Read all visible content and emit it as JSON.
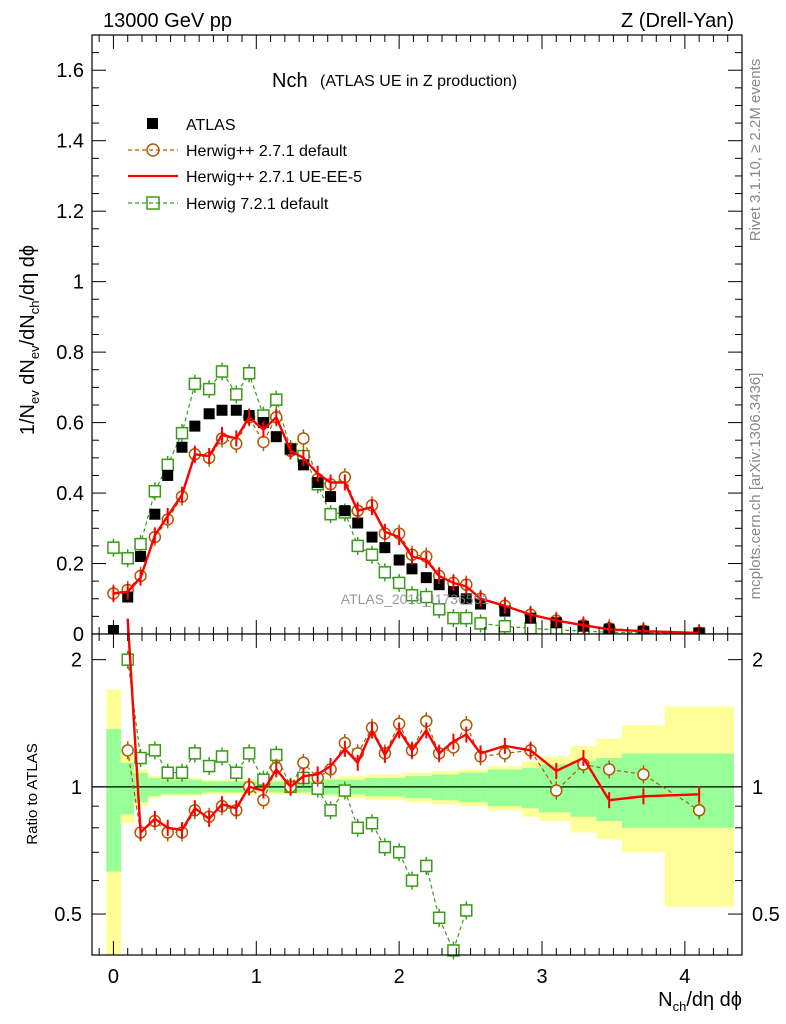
{
  "header": {
    "energy": "13000 GeV pp",
    "process": "Z (Drell-Yan)",
    "plot_title_main": "Nch",
    "plot_title_sub": "(ATLAS UE in Z production)",
    "side_rivet": "Rivet 3.1.10, ≥ 2.2M events",
    "side_mcplots": "mcplots.cern.ch [arXiv:1306.3436]",
    "watermark": "ATLAS_2019_I1736531"
  },
  "colors": {
    "atlas": "#000000",
    "herwigpp_default": "#b05a00",
    "herwigpp_ueee5": "#ff0000",
    "herwig7_default": "#3a9a1a",
    "band_inner": "#99ff99",
    "band_outer": "#ffff99"
  },
  "chart_data": [
    {
      "type": "scatter",
      "panel": "main",
      "title": "Nch (ATLAS UE in Z production)",
      "xlabel": "N_ch/dη dϕ",
      "ylabel": "1/N_ev dN_ev/dN_ch/dη dϕ",
      "xlim": [
        -0.15,
        4.4
      ],
      "ylim": [
        0,
        1.7
      ],
      "xticks": [
        "0",
        "1",
        "2",
        "3",
        "4"
      ],
      "yticks": [
        "0",
        "0.2",
        "0.4",
        "0.6",
        "0.8",
        "1",
        "1.2",
        "1.4",
        "1.6"
      ],
      "legend_position": "top-left",
      "series": [
        {
          "name": "ATLAS",
          "key": "atlas",
          "style": "square",
          "x": [
            0.0,
            0.1,
            0.19,
            0.29,
            0.38,
            0.48,
            0.57,
            0.67,
            0.76,
            0.86,
            0.95,
            1.05,
            1.14,
            1.24,
            1.33,
            1.43,
            1.52,
            1.62,
            1.71,
            1.81,
            1.9,
            2.0,
            2.09,
            2.19,
            2.28,
            2.38,
            2.47,
            2.57,
            2.74,
            2.92,
            3.1,
            3.29,
            3.47,
            3.71,
            4.1
          ],
          "y": [
            0.01,
            0.105,
            0.22,
            0.34,
            0.45,
            0.53,
            0.59,
            0.625,
            0.635,
            0.635,
            0.62,
            0.6,
            0.56,
            0.525,
            0.48,
            0.43,
            0.39,
            0.35,
            0.315,
            0.275,
            0.245,
            0.21,
            0.185,
            0.16,
            0.14,
            0.12,
            0.1,
            0.085,
            0.065,
            0.045,
            0.032,
            0.022,
            0.014,
            0.008,
            0.003
          ]
        },
        {
          "name": "Herwig++ 2.7.1 default",
          "key": "herwigpp_default",
          "style": "circle-dashed",
          "x": [
            0.0,
            0.1,
            0.19,
            0.29,
            0.38,
            0.48,
            0.57,
            0.67,
            0.76,
            0.86,
            0.95,
            1.05,
            1.14,
            1.24,
            1.33,
            1.43,
            1.52,
            1.62,
            1.71,
            1.81,
            1.9,
            2.0,
            2.09,
            2.19,
            2.28,
            2.38,
            2.47,
            2.57,
            2.74,
            2.92,
            3.1,
            3.29,
            3.47,
            3.71,
            4.1
          ],
          "y": [
            0.115,
            0.125,
            0.165,
            0.275,
            0.325,
            0.39,
            0.51,
            0.5,
            0.555,
            0.54,
            0.615,
            0.545,
            0.615,
            0.52,
            0.555,
            0.44,
            0.425,
            0.445,
            0.35,
            0.365,
            0.285,
            0.285,
            0.225,
            0.22,
            0.165,
            0.145,
            0.14,
            0.1,
            0.08,
            0.055,
            0.038,
            0.025,
            0.016,
            0.009,
            0.003
          ]
        },
        {
          "name": "Herwig++ 2.7.1 UE-EE-5",
          "key": "herwigpp_ueee5",
          "style": "line",
          "x": [
            0.0,
            0.1,
            0.19,
            0.29,
            0.38,
            0.48,
            0.57,
            0.67,
            0.76,
            0.86,
            0.95,
            1.05,
            1.14,
            1.24,
            1.33,
            1.43,
            1.52,
            1.62,
            1.71,
            1.81,
            1.9,
            2.0,
            2.09,
            2.19,
            2.28,
            2.38,
            2.47,
            2.57,
            2.74,
            2.92,
            3.1,
            3.29,
            3.47,
            3.71,
            4.1
          ],
          "y": [
            0.115,
            0.12,
            0.16,
            0.28,
            0.335,
            0.395,
            0.51,
            0.505,
            0.565,
            0.555,
            0.615,
            0.58,
            0.615,
            0.52,
            0.5,
            0.455,
            0.43,
            0.43,
            0.35,
            0.36,
            0.29,
            0.275,
            0.22,
            0.21,
            0.165,
            0.145,
            0.135,
            0.1,
            0.08,
            0.055,
            0.038,
            0.025,
            0.013,
            0.008,
            0.003
          ]
        },
        {
          "name": "Herwig 7.2.1 default",
          "key": "herwig7_default",
          "style": "square-dashed",
          "x": [
            0.0,
            0.1,
            0.19,
            0.29,
            0.38,
            0.48,
            0.57,
            0.67,
            0.76,
            0.86,
            0.95,
            1.05,
            1.14,
            1.24,
            1.33,
            1.43,
            1.52,
            1.62,
            1.71,
            1.81,
            1.9,
            2.0,
            2.09,
            2.19,
            2.28,
            2.38,
            2.47,
            2.57,
            2.74,
            2.92,
            3.1,
            3.29,
            3.47,
            3.71,
            4.1
          ],
          "y": [
            0.245,
            0.215,
            0.255,
            0.405,
            0.48,
            0.57,
            0.71,
            0.695,
            0.745,
            0.68,
            0.74,
            0.62,
            0.665,
            0.525,
            0.505,
            0.425,
            0.34,
            0.345,
            0.25,
            0.225,
            0.175,
            0.145,
            0.11,
            0.105,
            0.07,
            0.045,
            0.045,
            0.03,
            0.022,
            0.016,
            0.012,
            0.008,
            0.005,
            0.003,
            0.001
          ]
        }
      ]
    },
    {
      "type": "scatter",
      "panel": "ratio",
      "ylabel": "Ratio to ATLAS",
      "xlim": [
        -0.15,
        4.4
      ],
      "ylim": [
        0.4,
        2.3
      ],
      "yscale": "log",
      "yticks": [
        "0.5",
        "1",
        "2"
      ],
      "bands": {
        "x_edges": [
          -0.05,
          0.05,
          0.14,
          0.24,
          0.33,
          0.43,
          0.52,
          0.62,
          0.71,
          0.81,
          0.9,
          1.0,
          1.09,
          1.19,
          1.28,
          1.38,
          1.47,
          1.57,
          1.66,
          1.76,
          1.85,
          1.95,
          2.04,
          2.14,
          2.23,
          2.33,
          2.42,
          2.52,
          2.62,
          2.86,
          2.98,
          3.2,
          3.38,
          3.56,
          3.86,
          4.34
        ],
        "inner_lo": [
          0.63,
          0.86,
          0.92,
          0.95,
          0.96,
          0.96,
          0.96,
          0.97,
          0.97,
          0.97,
          0.97,
          0.98,
          0.97,
          0.97,
          0.97,
          0.97,
          0.96,
          0.96,
          0.96,
          0.95,
          0.95,
          0.95,
          0.94,
          0.94,
          0.93,
          0.93,
          0.92,
          0.92,
          0.9,
          0.89,
          0.87,
          0.85,
          0.83,
          0.8,
          0.8
        ],
        "inner_hi": [
          1.37,
          1.14,
          1.08,
          1.05,
          1.04,
          1.04,
          1.04,
          1.03,
          1.03,
          1.03,
          1.03,
          1.02,
          1.03,
          1.03,
          1.03,
          1.03,
          1.04,
          1.04,
          1.04,
          1.05,
          1.05,
          1.05,
          1.06,
          1.06,
          1.07,
          1.07,
          1.08,
          1.08,
          1.1,
          1.11,
          1.13,
          1.15,
          1.17,
          1.2,
          1.2
        ],
        "outer_lo": [
          0.38,
          0.82,
          0.9,
          0.94,
          0.95,
          0.95,
          0.95,
          0.96,
          0.96,
          0.96,
          0.96,
          0.97,
          0.96,
          0.96,
          0.96,
          0.96,
          0.95,
          0.94,
          0.94,
          0.93,
          0.93,
          0.93,
          0.92,
          0.92,
          0.91,
          0.91,
          0.9,
          0.9,
          0.88,
          0.85,
          0.83,
          0.78,
          0.75,
          0.7,
          0.52
        ],
        "outer_hi": [
          1.7,
          1.2,
          1.1,
          1.06,
          1.05,
          1.05,
          1.05,
          1.04,
          1.04,
          1.04,
          1.04,
          1.03,
          1.04,
          1.04,
          1.04,
          1.04,
          1.05,
          1.06,
          1.06,
          1.07,
          1.07,
          1.07,
          1.08,
          1.08,
          1.09,
          1.09,
          1.1,
          1.1,
          1.12,
          1.15,
          1.18,
          1.25,
          1.3,
          1.4,
          1.55
        ]
      },
      "series": [
        {
          "key": "herwigpp_default",
          "style": "circle-dashed",
          "x": [
            0.1,
            0.19,
            0.29,
            0.38,
            0.48,
            0.57,
            0.67,
            0.76,
            0.86,
            0.95,
            1.05,
            1.14,
            1.24,
            1.33,
            1.43,
            1.52,
            1.62,
            1.71,
            1.81,
            1.9,
            2.0,
            2.09,
            2.19,
            2.28,
            2.38,
            2.47,
            2.57,
            2.74,
            2.92,
            3.1,
            3.29,
            3.47,
            3.71,
            4.1
          ],
          "y": [
            1.22,
            0.78,
            0.83,
            0.78,
            0.78,
            0.88,
            0.85,
            0.9,
            0.88,
            1.0,
            0.93,
            1.11,
            1.0,
            1.14,
            1.05,
            1.1,
            1.27,
            1.2,
            1.38,
            1.2,
            1.41,
            1.22,
            1.43,
            1.2,
            1.24,
            1.4,
            1.18,
            1.2,
            1.22,
            0.98,
            1.13,
            1.1,
            1.07,
            0.88
          ]
        },
        {
          "key": "herwigpp_ueee5",
          "style": "line",
          "x": [
            0.1,
            0.19,
            0.29,
            0.38,
            0.48,
            0.57,
            0.67,
            0.76,
            0.86,
            0.95,
            1.05,
            1.14,
            1.24,
            1.33,
            1.43,
            1.52,
            1.62,
            1.71,
            1.81,
            1.9,
            2.0,
            2.09,
            2.19,
            2.28,
            2.38,
            2.47,
            2.57,
            2.74,
            2.92,
            3.1,
            3.29,
            3.47,
            3.71,
            4.1
          ],
          "y": [
            2.5,
            0.78,
            0.84,
            0.8,
            0.79,
            0.89,
            0.84,
            0.91,
            0.89,
            1.0,
            0.98,
            1.1,
            1.0,
            1.06,
            1.07,
            1.12,
            1.23,
            1.14,
            1.36,
            1.19,
            1.36,
            1.22,
            1.36,
            1.2,
            1.28,
            1.33,
            1.2,
            1.25,
            1.22,
            1.09,
            1.17,
            0.93,
            0.95,
            0.96
          ]
        },
        {
          "key": "herwig7_default",
          "style": "square-dashed",
          "x": [
            0.1,
            0.19,
            0.29,
            0.38,
            0.48,
            0.57,
            0.67,
            0.76,
            0.86,
            0.95,
            1.05,
            1.14,
            1.24,
            1.33,
            1.43,
            1.52,
            1.62,
            1.71,
            1.81,
            1.9,
            2.0,
            2.09,
            2.19,
            2.28,
            2.38,
            2.47
          ],
          "y": [
            2.0,
            1.17,
            1.22,
            1.08,
            1.08,
            1.2,
            1.12,
            1.18,
            1.08,
            1.2,
            1.04,
            1.19,
            1.0,
            1.05,
            0.99,
            0.88,
            0.98,
            0.8,
            0.82,
            0.72,
            0.7,
            0.6,
            0.65,
            0.49,
            0.41,
            0.51
          ]
        }
      ]
    }
  ]
}
